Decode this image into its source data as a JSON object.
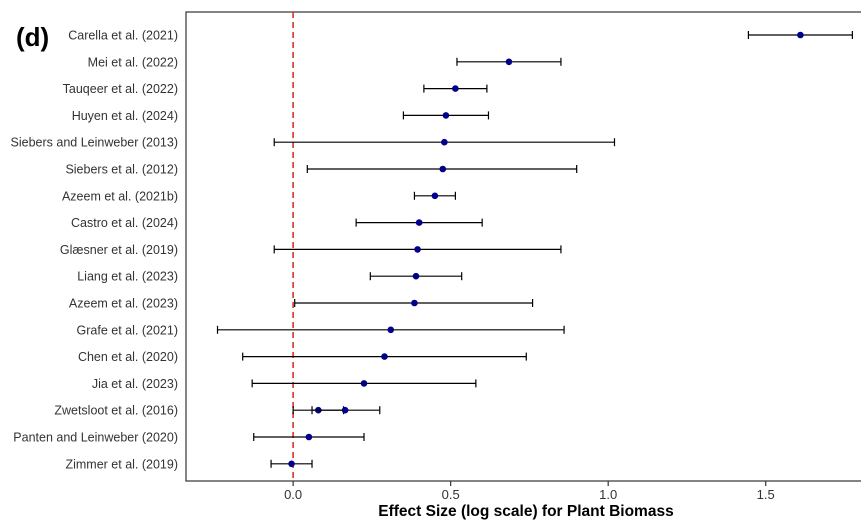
{
  "chart_data": {
    "type": "forest",
    "panel_label": "(d)",
    "xlabel": "Effect Size (log scale) for Plant Biomass",
    "ylabel": "",
    "xlim": [
      -0.34,
      1.85
    ],
    "x_ticks": [
      0.0,
      0.5,
      1.0,
      1.5
    ],
    "x_tick_labels": [
      "0.0",
      "0.5",
      "1.0",
      "1.5"
    ],
    "reference_line": {
      "x": 0,
      "color": "#e0302a",
      "style": "dashed"
    },
    "grid": false,
    "legend": "none",
    "point_color": "#00008b",
    "studies": [
      {
        "label": "Carella et al. (2021)",
        "estimates": [
          {
            "est": 1.61,
            "lo": 1.445,
            "hi": 1.775
          }
        ]
      },
      {
        "label": "Mei et al. (2022)",
        "estimates": [
          {
            "est": 0.685,
            "lo": 0.52,
            "hi": 0.85
          }
        ]
      },
      {
        "label": "Tauqeer et al. (2022)",
        "estimates": [
          {
            "est": 0.515,
            "lo": 0.415,
            "hi": 0.615
          }
        ]
      },
      {
        "label": "Huyen et al. (2024)",
        "estimates": [
          {
            "est": 0.485,
            "lo": 0.35,
            "hi": 0.62
          }
        ]
      },
      {
        "label": "Siebers and Leinweber (2013)",
        "estimates": [
          {
            "est": 0.48,
            "lo": -0.06,
            "hi": 1.02
          }
        ]
      },
      {
        "label": "Siebers et al. (2012)",
        "estimates": [
          {
            "est": 0.475,
            "lo": 0.045,
            "hi": 0.9
          }
        ]
      },
      {
        "label": "Azeem et al. (2021b)",
        "estimates": [
          {
            "est": 0.45,
            "lo": 0.385,
            "hi": 0.515
          }
        ]
      },
      {
        "label": "Castro et al. (2024)",
        "estimates": [
          {
            "est": 0.4,
            "lo": 0.2,
            "hi": 0.6
          }
        ]
      },
      {
        "label": "Glæsner et al. (2019)",
        "estimates": [
          {
            "est": 0.395,
            "lo": -0.06,
            "hi": 0.85
          }
        ]
      },
      {
        "label": "Liang et al. (2023)",
        "estimates": [
          {
            "est": 0.39,
            "lo": 0.245,
            "hi": 0.535
          }
        ]
      },
      {
        "label": "Azeem et al. (2023)",
        "estimates": [
          {
            "est": 0.385,
            "lo": 0.005,
            "hi": 0.76
          }
        ]
      },
      {
        "label": "Grafe et al. (2021)",
        "estimates": [
          {
            "est": 0.31,
            "lo": -0.24,
            "hi": 0.86
          }
        ]
      },
      {
        "label": "Chen et al. (2020)",
        "estimates": [
          {
            "est": 0.29,
            "lo": -0.16,
            "hi": 0.74
          }
        ]
      },
      {
        "label": "Jia et al. (2023)",
        "estimates": [
          {
            "est": 0.225,
            "lo": -0.13,
            "hi": 0.58
          }
        ]
      },
      {
        "label": "Zwetsloot et al. (2016)",
        "estimates": [
          {
            "est": 0.08,
            "lo": 0.0,
            "hi": 0.16
          },
          {
            "est": 0.165,
            "lo": 0.06,
            "hi": 0.275
          }
        ]
      },
      {
        "label": "Panten and Leinweber (2020)",
        "estimates": [
          {
            "est": 0.05,
            "lo": -0.125,
            "hi": 0.225
          }
        ]
      },
      {
        "label": "Zimmer et al. (2019)",
        "estimates": [
          {
            "est": -0.005,
            "lo": -0.07,
            "hi": 0.06
          }
        ]
      }
    ]
  }
}
